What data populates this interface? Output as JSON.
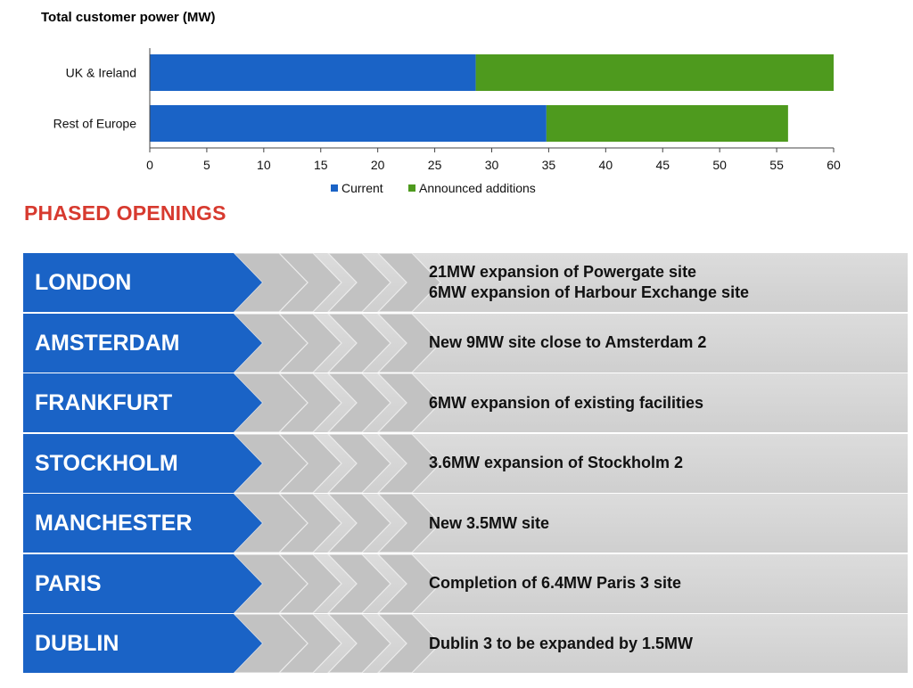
{
  "chart_data": {
    "type": "bar",
    "orientation": "horizontal",
    "stacked": true,
    "title": "Total customer power (MW)",
    "categories": [
      "UK & Ireland",
      "Rest of Europe"
    ],
    "series": [
      {
        "name": "Current",
        "values": [
          28.6,
          34.8
        ],
        "color": "#1a63c6"
      },
      {
        "name": "Announced additions",
        "values": [
          31.4,
          21.2
        ],
        "color": "#4e9a1e"
      }
    ],
    "xlim": [
      0,
      60
    ],
    "xticks": [
      "0",
      "5",
      "10",
      "15",
      "20",
      "25",
      "30",
      "35",
      "40",
      "45",
      "50",
      "55",
      "60"
    ],
    "grid": false,
    "legend": "bottom"
  },
  "section_title": "PHASED OPENINGS",
  "openings": [
    {
      "city": "LONDON",
      "lines": [
        "21MW expansion of Powergate site",
        "6MW expansion of Harbour Exchange site"
      ]
    },
    {
      "city": "AMSTERDAM",
      "lines": [
        "New 9MW site close to Amsterdam 2"
      ]
    },
    {
      "city": "FRANKFURT",
      "lines": [
        "6MW expansion of existing facilities"
      ]
    },
    {
      "city": "STOCKHOLM",
      "lines": [
        "3.6MW expansion of Stockholm 2"
      ]
    },
    {
      "city": "MANCHESTER",
      "lines": [
        "New 3.5MW site"
      ]
    },
    {
      "city": "PARIS",
      "lines": [
        "Completion of 6.4MW Paris 3 site"
      ]
    },
    {
      "city": "DUBLIN",
      "lines": [
        "Dublin 3 to be expanded by 1.5MW"
      ]
    }
  ],
  "colors": {
    "city_band": "#1a63c6",
    "chevron": "#c2c2c2",
    "section_title": "#d73a2f"
  }
}
